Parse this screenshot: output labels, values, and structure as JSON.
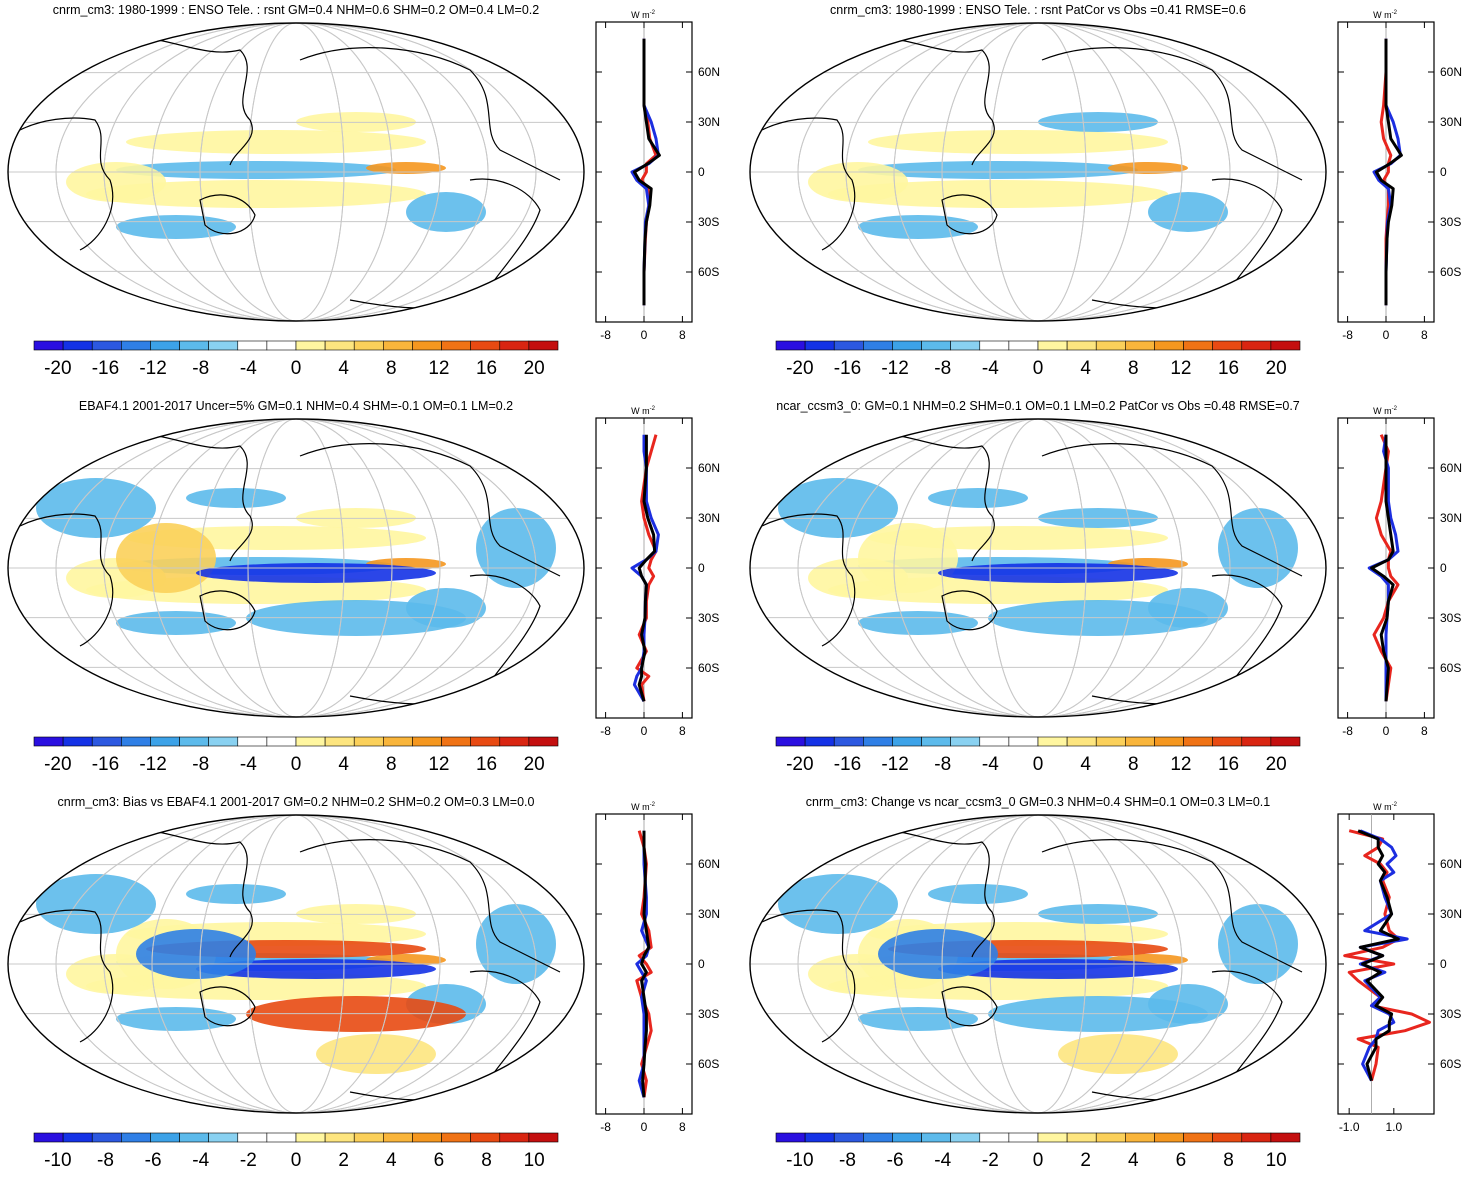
{
  "chart_data": [
    {
      "type": "heatmap",
      "title": "cnrm_cm3: 1980-1999 : ENSO Tele. : rsnt GM=0.4 NHM=0.6 SHM=0.2 OM=0.4 LM=0.2",
      "colorbar": {
        "labels": [
          "-20",
          "-16",
          "-12",
          "-8",
          "-4",
          "0",
          "4",
          "8",
          "12",
          "16",
          "20"
        ],
        "range": [
          -22,
          22
        ]
      },
      "zonal": {
        "unit_prefix": "W m",
        "unit_exp": "-2",
        "xlim": [
          -10,
          10
        ],
        "xticks": [
          "-8",
          "0",
          "8"
        ],
        "lat_labels": [
          "60N",
          "30N",
          "0",
          "30S",
          "60S"
        ],
        "series": [
          {
            "name": "red",
            "color": "#e8261e",
            "lat": [
              80,
              60,
              40,
              30,
              20,
              10,
              5,
              0,
              -5,
              -10,
              -20,
              -30,
              -40,
              -60,
              -80
            ],
            "values": [
              0,
              0,
              0,
              0.8,
              1.2,
              2.5,
              0.5,
              0.5,
              -0.5,
              0.8,
              1.0,
              0.5,
              0.3,
              0,
              0
            ]
          },
          {
            "name": "blue",
            "color": "#1c2ee0",
            "lat": [
              80,
              60,
              40,
              30,
              20,
              10,
              5,
              0,
              -5,
              -10,
              -20,
              -30,
              -40,
              -60,
              -80
            ],
            "values": [
              0,
              0,
              0,
              1.5,
              2.5,
              3.0,
              1.0,
              -2.5,
              -1.5,
              0.5,
              1.0,
              0.3,
              0.2,
              0,
              0
            ]
          },
          {
            "name": "black",
            "color": "#000000",
            "lat": [
              80,
              60,
              40,
              30,
              20,
              10,
              5,
              0,
              -5,
              -10,
              -20,
              -30,
              -40,
              -60,
              -80
            ],
            "values": [
              0,
              0,
              0,
              0.5,
              1.0,
              3.2,
              0.8,
              -2.0,
              -1.0,
              1.5,
              1.2,
              0.5,
              0.2,
              0,
              0
            ]
          }
        ]
      }
    },
    {
      "type": "heatmap",
      "title": "cnrm_cm3: 1980-1999 : ENSO Tele. : rsnt PatCor vs Obs =0.41 RMSE=0.6",
      "colorbar": {
        "labels": [
          "-20",
          "-16",
          "-12",
          "-8",
          "-4",
          "0",
          "4",
          "8",
          "12",
          "16",
          "20"
        ],
        "range": [
          -22,
          22
        ]
      },
      "zonal": {
        "unit_prefix": "W m",
        "unit_exp": "-2",
        "xlim": [
          -10,
          10
        ],
        "xticks": [
          "-8",
          "0",
          "8"
        ],
        "lat_labels": [
          "60N",
          "30N",
          "0",
          "30S",
          "60S"
        ],
        "series": [
          {
            "name": "red",
            "color": "#e8261e",
            "lat": [
              80,
              60,
              40,
              30,
              20,
              10,
              5,
              0,
              -5,
              -10,
              -20,
              -30,
              -40,
              -60,
              -80
            ],
            "values": [
              0,
              0,
              -0.5,
              -1.0,
              -0.5,
              1.0,
              0.5,
              0.5,
              -0.5,
              0.5,
              0.5,
              0.2,
              0,
              0,
              0
            ]
          },
          {
            "name": "blue",
            "color": "#1c2ee0",
            "lat": [
              80,
              60,
              40,
              30,
              20,
              10,
              5,
              0,
              -5,
              -10,
              -20,
              -30,
              -40,
              -60,
              -80
            ],
            "values": [
              0,
              0,
              0,
              1.5,
              2.5,
              3.0,
              1.0,
              -2.5,
              -1.5,
              0.5,
              1.0,
              0.3,
              0.2,
              0,
              0
            ]
          },
          {
            "name": "black",
            "color": "#000000",
            "lat": [
              80,
              60,
              40,
              30,
              20,
              10,
              5,
              0,
              -5,
              -10,
              -20,
              -30,
              -40,
              -60,
              -80
            ],
            "values": [
              0,
              0,
              0,
              0.5,
              1.0,
              3.2,
              0.8,
              -2.0,
              -1.0,
              1.5,
              1.2,
              0.5,
              0.2,
              0,
              0
            ]
          }
        ]
      }
    },
    {
      "type": "heatmap",
      "title": "EBAF4.1 2001-2017 Uncer=5% GM=0.1 NHM=0.4 SHM=-0.1 OM=0.1 LM=0.2",
      "colorbar": {
        "labels": [
          "-20",
          "-16",
          "-12",
          "-8",
          "-4",
          "0",
          "4",
          "8",
          "12",
          "16",
          "20"
        ],
        "range": [
          -22,
          22
        ]
      },
      "zonal": {
        "unit_prefix": "W m",
        "unit_exp": "-2",
        "xlim": [
          -10,
          10
        ],
        "xticks": [
          "-8",
          "0",
          "8"
        ],
        "lat_labels": [
          "60N",
          "30N",
          "0",
          "30S",
          "60S"
        ],
        "series": [
          {
            "name": "red",
            "color": "#e8261e",
            "lat": [
              80,
              70,
              60,
              40,
              30,
              20,
              10,
              5,
              0,
              -5,
              -10,
              -20,
              -30,
              -40,
              -50,
              -60,
              -65,
              -70,
              -80
            ],
            "values": [
              2.5,
              1.5,
              0.5,
              -0.5,
              0,
              1.0,
              2.5,
              1.5,
              1.0,
              2.0,
              1.0,
              0.5,
              0.5,
              -1.0,
              0.5,
              -1.5,
              1.0,
              -0.5,
              0
            ]
          },
          {
            "name": "blue",
            "color": "#1c2ee0",
            "lat": [
              80,
              70,
              60,
              40,
              30,
              20,
              10,
              5,
              0,
              -5,
              -10,
              -20,
              -30,
              -40,
              -50,
              -60,
              -65,
              -70,
              -80
            ],
            "values": [
              0,
              0,
              0.5,
              0.5,
              1.5,
              3.0,
              2.5,
              0.5,
              -2.5,
              -0.5,
              0.5,
              0.3,
              0.2,
              0,
              0,
              -0.5,
              -1.5,
              -2.0,
              0
            ]
          },
          {
            "name": "black",
            "color": "#000000",
            "lat": [
              80,
              70,
              60,
              40,
              30,
              20,
              10,
              5,
              0,
              -5,
              -10,
              -20,
              -30,
              -40,
              -50,
              -60,
              -65,
              -70,
              -80
            ],
            "values": [
              0.5,
              0.5,
              0.5,
              0,
              0.8,
              2.0,
              2.2,
              0.5,
              -1.0,
              -0.5,
              0.5,
              0.3,
              0.2,
              -0.5,
              0.2,
              -0.5,
              -0.5,
              -1.0,
              0
            ]
          }
        ]
      }
    },
    {
      "type": "heatmap",
      "title": "ncar_ccsm3_0: GM=0.1 NHM=0.2 SHM=0.1 OM=0.1 LM=0.2 PatCor vs Obs =0.48 RMSE=0.7",
      "colorbar": {
        "labels": [
          "-20",
          "-16",
          "-12",
          "-8",
          "-4",
          "0",
          "4",
          "8",
          "12",
          "16",
          "20"
        ],
        "range": [
          -22,
          22
        ]
      },
      "zonal": {
        "unit_prefix": "W m",
        "unit_exp": "-2",
        "xlim": [
          -10,
          10
        ],
        "xticks": [
          "-8",
          "0",
          "8"
        ],
        "lat_labels": [
          "60N",
          "30N",
          "0",
          "30S",
          "60S"
        ],
        "series": [
          {
            "name": "red",
            "color": "#e8261e",
            "lat": [
              80,
              70,
              60,
              40,
              30,
              20,
              10,
              5,
              0,
              -5,
              -10,
              -20,
              -30,
              -40,
              -50,
              -60,
              -80
            ],
            "values": [
              -1.0,
              0.5,
              0,
              -1.0,
              -2.0,
              -1.0,
              1.0,
              0.5,
              0.5,
              1.0,
              2.5,
              0.5,
              -0.5,
              -2.5,
              -1.0,
              1.0,
              0
            ]
          },
          {
            "name": "blue",
            "color": "#1c2ee0",
            "lat": [
              80,
              70,
              60,
              40,
              30,
              20,
              10,
              5,
              0,
              -5,
              -10,
              -20,
              -30,
              -40,
              -50,
              -60,
              -80
            ],
            "values": [
              0,
              -0.5,
              0.5,
              0.5,
              1.0,
              2.0,
              2.5,
              0.5,
              -3.5,
              -1.0,
              0.5,
              0.5,
              0.2,
              0,
              0,
              0,
              0
            ]
          },
          {
            "name": "black",
            "color": "#000000",
            "lat": [
              80,
              70,
              60,
              40,
              30,
              20,
              10,
              5,
              0,
              -5,
              -10,
              -20,
              -30,
              -40,
              -50,
              -60,
              -80
            ],
            "values": [
              0,
              0,
              0,
              0,
              0.5,
              1.0,
              1.5,
              0.5,
              -3.0,
              -0.5,
              1.5,
              0.5,
              0.2,
              -1.0,
              -0.5,
              0.5,
              0
            ]
          }
        ]
      }
    },
    {
      "type": "heatmap",
      "title": "cnrm_cm3: Bias vs EBAF4.1 2001-2017 GM=0.2 NHM=0.2 SHM=0.2 OM=0.3 LM=0.0",
      "colorbar": {
        "labels": [
          "-10",
          "-8",
          "-6",
          "-4",
          "-2",
          "0",
          "2",
          "4",
          "6",
          "8",
          "10"
        ],
        "range": [
          -11,
          11
        ]
      },
      "zonal": {
        "unit_prefix": "W m",
        "unit_exp": "-2",
        "xlim": [
          -10,
          10
        ],
        "xticks": [
          "-8",
          "0",
          "8"
        ],
        "lat_labels": [
          "60N",
          "30N",
          "0",
          "30S",
          "60S"
        ],
        "series": [
          {
            "name": "red",
            "color": "#e8261e",
            "lat": [
              80,
              70,
              60,
              40,
              30,
              20,
              10,
              5,
              0,
              -5,
              -10,
              -20,
              -30,
              -40,
              -50,
              -60,
              -70,
              -80
            ],
            "values": [
              -1.0,
              0,
              0.5,
              0,
              -0.5,
              1.0,
              1.5,
              -1.0,
              0.5,
              1.5,
              -1.5,
              -0.5,
              1.0,
              1.5,
              0.5,
              -0.5,
              0.5,
              0
            ]
          },
          {
            "name": "blue",
            "color": "#1c2ee0",
            "lat": [
              80,
              70,
              60,
              40,
              30,
              20,
              10,
              5,
              0,
              -5,
              -10,
              -20,
              -30,
              -40,
              -50,
              -60,
              -70,
              -80
            ],
            "values": [
              0,
              0,
              0,
              0.5,
              0.5,
              -0.5,
              1.0,
              0.5,
              -1.5,
              -0.5,
              0.5,
              -0.5,
              0,
              0,
              0,
              0,
              -1.0,
              0
            ]
          },
          {
            "name": "black",
            "color": "#000000",
            "lat": [
              80,
              70,
              60,
              40,
              30,
              20,
              10,
              5,
              0,
              -5,
              -10,
              -20,
              -30,
              -40,
              -50,
              -60,
              -70,
              -80
            ],
            "values": [
              0,
              0,
              0.3,
              0.2,
              0,
              0.5,
              1.0,
              0,
              -0.5,
              0.5,
              -0.5,
              0,
              0.5,
              0.5,
              0.2,
              0,
              -0.3,
              0
            ]
          }
        ]
      }
    },
    {
      "type": "heatmap",
      "title": "cnrm_cm3: Change vs ncar_ccsm3_0 GM=0.3 NHM=0.4 SHM=0.1 OM=0.3 LM=0.1",
      "colorbar": {
        "labels": [
          "-10",
          "-8",
          "-6",
          "-4",
          "-2",
          "0",
          "2",
          "4",
          "6",
          "8",
          "10"
        ],
        "range": [
          -11,
          11
        ]
      },
      "zonal": {
        "unit_prefix": "W m",
        "unit_exp": "-2",
        "xlim": [
          -1.5,
          2.8
        ],
        "xticks": [
          "-1.0",
          "1.0"
        ],
        "lat_labels": [
          "60N",
          "30N",
          "0",
          "30S",
          "60S"
        ],
        "series": [
          {
            "name": "red",
            "color": "#e8261e",
            "lat": [
              80,
              75,
              70,
              65,
              60,
              55,
              50,
              40,
              30,
              20,
              15,
              10,
              5,
              0,
              -5,
              -10,
              -20,
              -25,
              -30,
              -35,
              -40,
              -45,
              -50,
              -60,
              -70
            ],
            "values": [
              -1.0,
              0.5,
              0.3,
              -0.3,
              0.4,
              0.7,
              0.5,
              0.8,
              0.6,
              0.8,
              1.2,
              0.5,
              -1.2,
              1.0,
              -1.0,
              -0.6,
              0.4,
              0,
              1.8,
              2.6,
              1.5,
              -0.6,
              0.3,
              0.2,
              0
            ]
          },
          {
            "name": "blue",
            "color": "#1c2ee0",
            "lat": [
              80,
              75,
              70,
              65,
              60,
              55,
              50,
              40,
              30,
              20,
              15,
              10,
              5,
              0,
              -5,
              -10,
              -20,
              -25,
              -30,
              -35,
              -40,
              -45,
              -50,
              -60,
              -70
            ],
            "values": [
              -0.5,
              0.4,
              0.9,
              1.1,
              0.7,
              1.0,
              0.4,
              0.6,
              0.9,
              -0.3,
              1.6,
              -0.5,
              0.5,
              -0.5,
              0.6,
              -0.3,
              0.4,
              0,
              0.8,
              1.0,
              0.3,
              0.2,
              -0.1,
              -0.4,
              0
            ]
          },
          {
            "name": "black",
            "color": "#000000",
            "lat": [
              80,
              75,
              70,
              65,
              60,
              55,
              50,
              40,
              30,
              20,
              15,
              10,
              5,
              0,
              -5,
              -10,
              -20,
              -25,
              -30,
              -35,
              -40,
              -45,
              -50,
              -60,
              -70
            ],
            "values": [
              -0.6,
              0.3,
              0.3,
              0.5,
              0.3,
              0.6,
              0.4,
              0.7,
              0.9,
              0.4,
              1.2,
              -0.5,
              0.5,
              -0.4,
              0.4,
              -0.2,
              0.5,
              0.2,
              0.9,
              0.8,
              0.8,
              0.2,
              0.2,
              -0.2,
              0
            ]
          }
        ]
      }
    }
  ]
}
